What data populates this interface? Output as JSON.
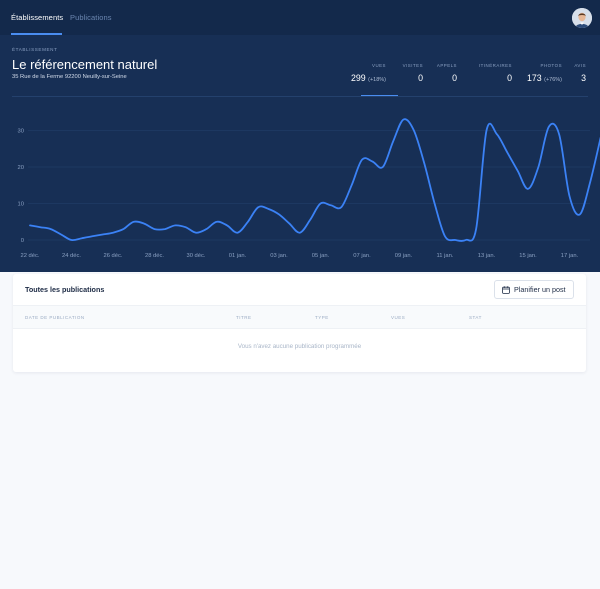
{
  "nav": {
    "tabs": [
      {
        "label": "Établissements",
        "active": true
      },
      {
        "label": "Publications",
        "active": false
      }
    ]
  },
  "establishment": {
    "overline": "ÉTABLISSEMENT",
    "name": "Le référencement naturel",
    "address": "35 Rue de la Ferme 92200 Neuilly-sur-Seine"
  },
  "stats": [
    {
      "label": "VUES",
      "value": "299",
      "change": "(+18%)"
    },
    {
      "label": "VISITES",
      "value": "0",
      "change": ""
    },
    {
      "label": "APPELS",
      "value": "0",
      "change": ""
    },
    {
      "label": "ITINÉRAIRES",
      "value": "0",
      "change": ""
    },
    {
      "label": "PHOTOS",
      "value": "173",
      "change": "(+76%)"
    },
    {
      "label": "AVIS",
      "value": "3",
      "change": ""
    }
  ],
  "chart_data": {
    "type": "line",
    "x": [
      0,
      0.5,
      1,
      1.5,
      2,
      2.5,
      3,
      3.5,
      4,
      4.5,
      5,
      5.5,
      6,
      6.5,
      7,
      7.5,
      8,
      8.5,
      9,
      9.5,
      10,
      10.5,
      11,
      11.5,
      12,
      12.5,
      13,
      13.5,
      14,
      14.5,
      15,
      15.5,
      16,
      16.5,
      17,
      17.5,
      18,
      18.5,
      19,
      19.5,
      20,
      20.5,
      21,
      21.5,
      22,
      22.5,
      23,
      23.5,
      24,
      24.5,
      25,
      25.5,
      26,
      26.5,
      27,
      27.5
    ],
    "values": [
      4,
      3.5,
      3,
      1.5,
      0,
      0.5,
      1,
      1.5,
      2,
      3,
      5,
      4.5,
      3,
      3,
      4,
      3.5,
      2,
      3,
      5,
      4,
      2,
      5,
      9,
      8.5,
      7,
      4.5,
      2,
      5.5,
      10,
      9.5,
      9,
      15,
      22,
      21.5,
      20,
      27,
      33,
      30,
      21,
      10,
      1,
      0,
      0,
      3,
      30,
      29,
      24,
      19,
      14,
      20,
      31,
      29,
      12,
      7,
      16,
      28
    ],
    "x_tick_labels": [
      "22 déc.",
      "24 déc.",
      "26 déc.",
      "28 déc.",
      "30 déc.",
      "01 jan.",
      "03 jan.",
      "05 jan.",
      "07 jan.",
      "09 jan.",
      "11 jan.",
      "13 jan.",
      "15 jan.",
      "17 jan."
    ],
    "y_ticks": [
      0,
      10,
      20,
      30
    ],
    "ylim": [
      0,
      34
    ],
    "grid": true,
    "color": "#3b82f6"
  },
  "publications": {
    "title": "Toutes les publications",
    "button_label": "Planifier un post",
    "columns": [
      "DATE DE PUBLICATION",
      "TITRE",
      "TYPE",
      "VUES",
      "STAT"
    ],
    "empty_message": "Vous n'avez aucune publication programmée"
  }
}
